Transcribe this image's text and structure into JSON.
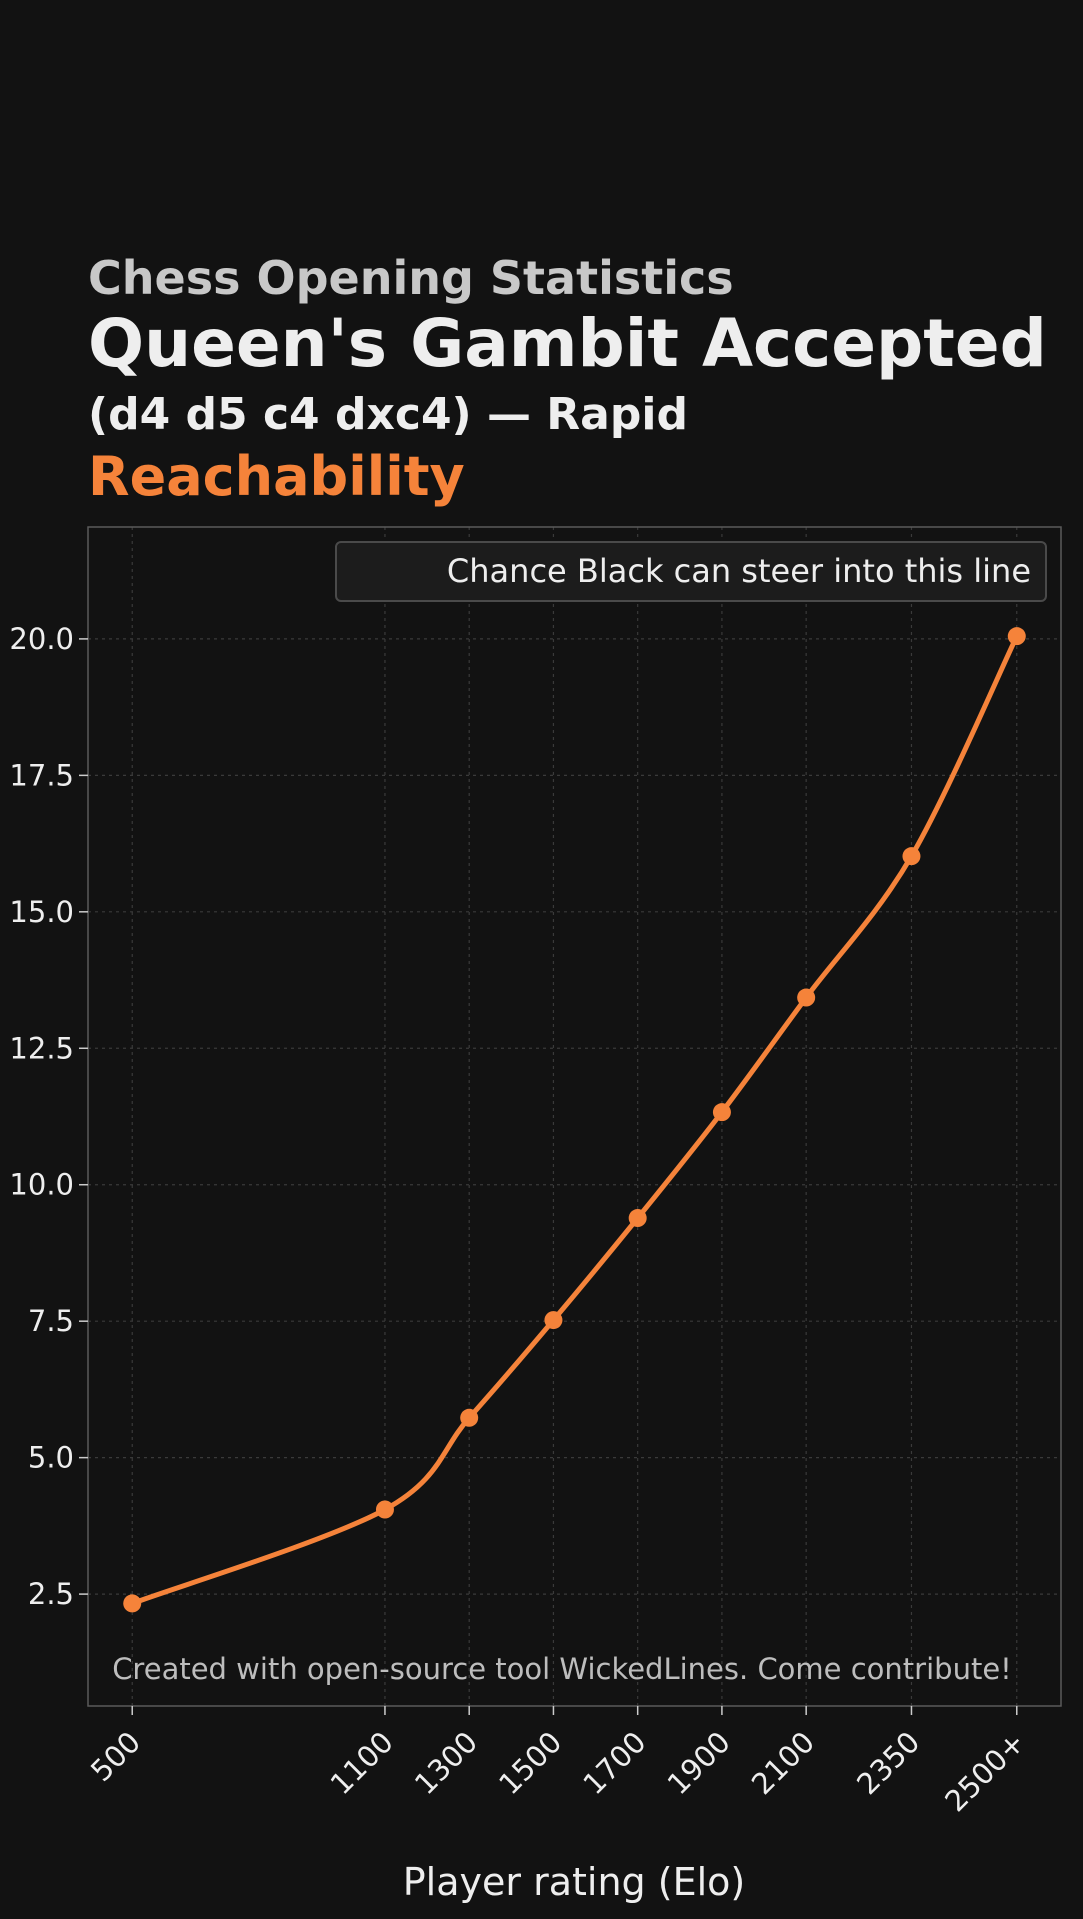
{
  "chart_data": {
    "type": "line",
    "supertitle": "Chess Opening Statistics",
    "title": "Queen's Gambit Accepted",
    "subtitle": "(d4 d5 c4 dxc4) — Rapid",
    "metric": "Reachability",
    "xlabel": "Player rating (Elo)",
    "ylabel": "",
    "x": [
      500,
      1100,
      1300,
      1500,
      1700,
      1900,
      2100,
      2350,
      2600
    ],
    "x_tick_labels": [
      "500",
      "1100",
      "1300",
      "1500",
      "1700",
      "1900",
      "2100",
      "2350",
      "2500+"
    ],
    "xlim": [
      395,
      2705
    ],
    "ylim": [
      0.45,
      22.05
    ],
    "y_ticks": [
      2.5,
      5.0,
      7.5,
      10.0,
      12.5,
      15.0,
      17.5,
      20.0
    ],
    "y_tick_labels": [
      "2.5",
      "5.0",
      "7.5",
      "10.0",
      "12.5",
      "15.0",
      "17.5",
      "20.0"
    ],
    "series": [
      {
        "name": "Chance Black can steer into this line",
        "values": [
          2.33,
          4.05,
          5.73,
          7.52,
          9.39,
          11.33,
          13.43,
          16.02,
          20.05
        ],
        "color": "#f5833a"
      }
    ],
    "grid": true,
    "legend_position": "top-right",
    "annotation": "Created with open-source tool WickedLines. Come contribute!",
    "colors": {
      "background": "#121212",
      "accent": "#f5833a",
      "grid": "#3a3a3a",
      "frame": "#5a5a5a",
      "text": "#eeeeee"
    }
  }
}
